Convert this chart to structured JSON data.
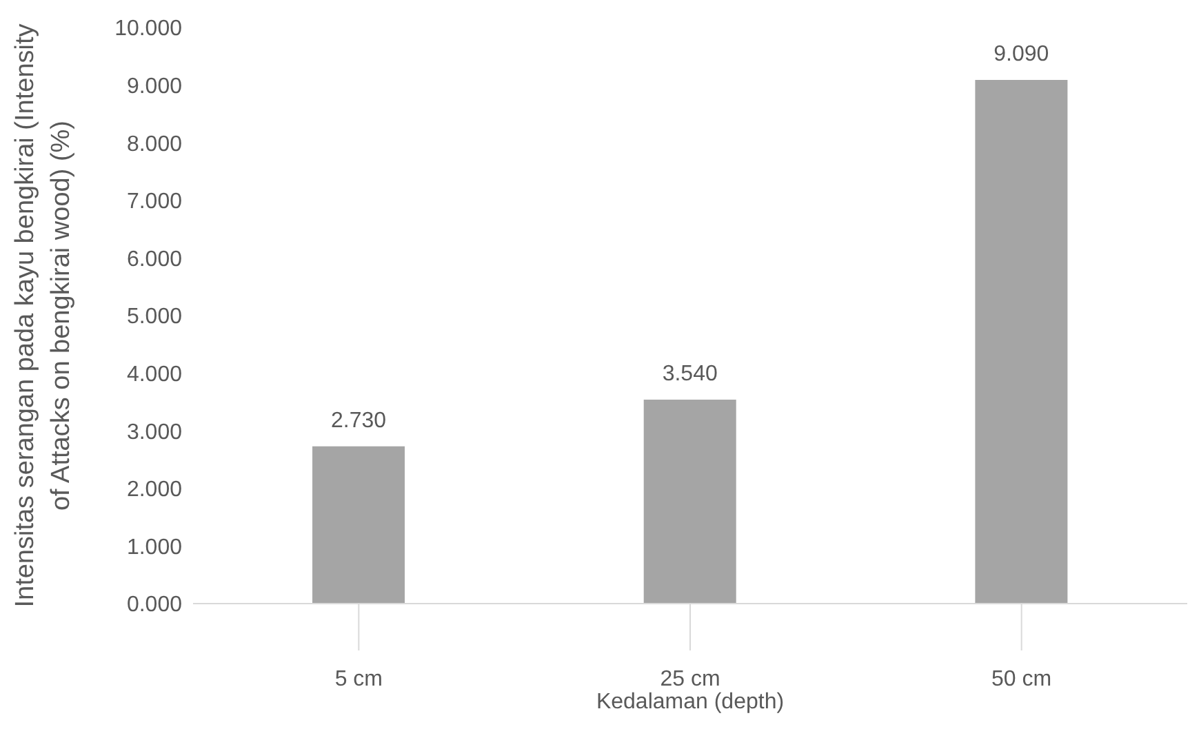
{
  "chart_data": {
    "type": "bar",
    "xlabel": "Kedalaman (depth)",
    "ylabel": "Intensitas serangan pada kayu bengkirai (Intensity of Attacks on bengkirai wood) (%)",
    "categories": [
      "5 cm",
      "25 cm",
      "50 cm"
    ],
    "values": [
      2.73,
      3.54,
      9.09
    ],
    "value_labels": [
      "2.730",
      "3.540",
      "9.090"
    ],
    "color": "#a5a5a5",
    "ylim": [
      0,
      10
    ],
    "yticks": [
      {
        "value": 0,
        "label": "0.000"
      },
      {
        "value": 1,
        "label": "1.000"
      },
      {
        "value": 2,
        "label": "2.000"
      },
      {
        "value": 3,
        "label": "3.000"
      },
      {
        "value": 4,
        "label": "4.000"
      },
      {
        "value": 5,
        "label": "5.000"
      },
      {
        "value": 6,
        "label": "6.000"
      },
      {
        "value": 7,
        "label": "7.000"
      },
      {
        "value": 8,
        "label": "8.000"
      },
      {
        "value": 9,
        "label": "9.000"
      },
      {
        "value": 10,
        "label": "10.000"
      }
    ],
    "grid": false,
    "legend": false
  }
}
